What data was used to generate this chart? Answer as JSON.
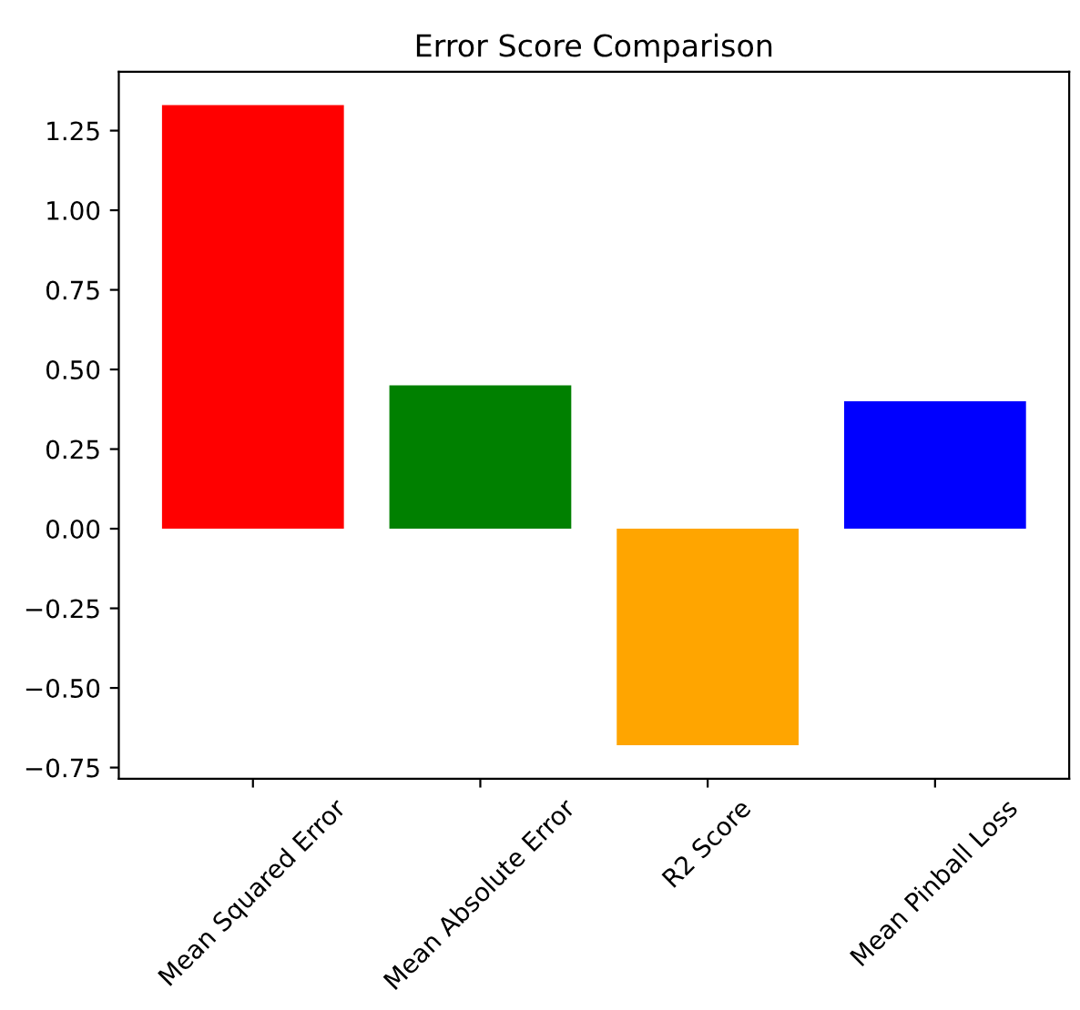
{
  "chart_data": {
    "type": "bar",
    "title": "Error Score Comparison",
    "categories": [
      "Mean Squared Error",
      "Mean Absolute Error",
      "R2 Score",
      "Mean Pinball Loss"
    ],
    "values": [
      1.33,
      0.45,
      -0.68,
      0.4
    ],
    "colors": [
      "#ff0000",
      "#008000",
      "#ffa500",
      "#0000ff"
    ],
    "ylim": [
      -0.785,
      1.435
    ],
    "yticks": [
      {
        "value": -0.75,
        "label": "−0.75"
      },
      {
        "value": -0.5,
        "label": "−0.50"
      },
      {
        "value": -0.25,
        "label": "−0.25"
      },
      {
        "value": 0,
        "label": "0.00"
      },
      {
        "value": 0.25,
        "label": "0.25"
      },
      {
        "value": 0.5,
        "label": "0.50"
      },
      {
        "value": 0.75,
        "label": "0.75"
      },
      {
        "value": 1.0,
        "label": "1.00"
      },
      {
        "value": 1.25,
        "label": "1.25"
      }
    ],
    "grid": false
  }
}
